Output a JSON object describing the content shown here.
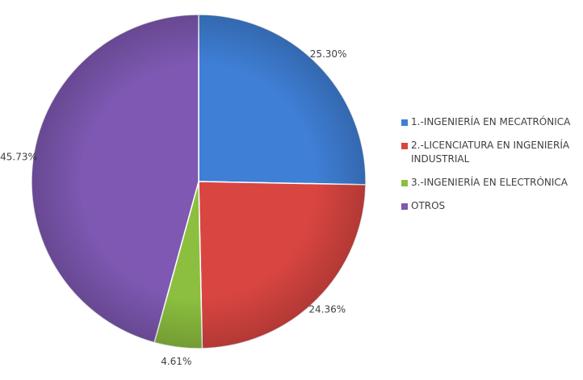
{
  "chart_data": {
    "type": "pie",
    "categories": [
      "1.-INGENIERÍA EN MECATRÓNICA",
      "2.-LICENCIATURA EN INGENIERÍA INDUSTRIAL",
      "3.-INGENIERÍA EN ELECTRÓNICA",
      "OTROS"
    ],
    "values": [
      25.3,
      24.36,
      4.61,
      45.73
    ],
    "value_labels": [
      "25.30%",
      "24.36%",
      "4.61%",
      "45.73%"
    ],
    "colors": [
      "#3f7fd6",
      "#d94541",
      "#8cbf3f",
      "#7e58b2"
    ],
    "legend": "right"
  }
}
